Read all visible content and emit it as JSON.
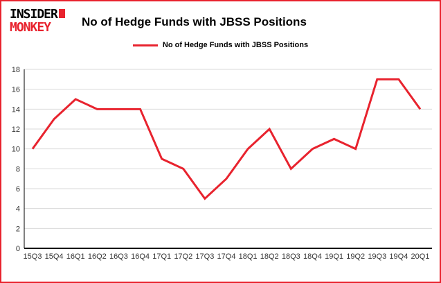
{
  "logo": {
    "line1": "INSIDER",
    "line2": "MONKEY"
  },
  "header": {
    "title": "No of Hedge Funds with JBSS Positions"
  },
  "legend": {
    "label": "No of Hedge Funds with JBSS Positions"
  },
  "colors": {
    "line": "#e8232e",
    "border": "#e8232e",
    "grid": "#d9d9d9",
    "axis": "#000000",
    "tick_text": "#333333"
  },
  "chart_data": {
    "type": "line",
    "title": "No of Hedge Funds with JBSS Positions",
    "categories": [
      "15Q3",
      "15Q4",
      "16Q1",
      "16Q2",
      "16Q3",
      "16Q4",
      "17Q1",
      "17Q2",
      "17Q3",
      "17Q4",
      "18Q1",
      "18Q2",
      "18Q3",
      "18Q4",
      "19Q1",
      "19Q2",
      "19Q3",
      "19Q4",
      "20Q1"
    ],
    "values": [
      10,
      13,
      15,
      14,
      14,
      14,
      9,
      8,
      5,
      7,
      10,
      12,
      8,
      10,
      11,
      10,
      17,
      17,
      14
    ],
    "xlabel": "",
    "ylabel": "",
    "ylim": [
      0,
      18
    ],
    "ytick_step": 2,
    "grid": true,
    "legend_position": "top"
  }
}
